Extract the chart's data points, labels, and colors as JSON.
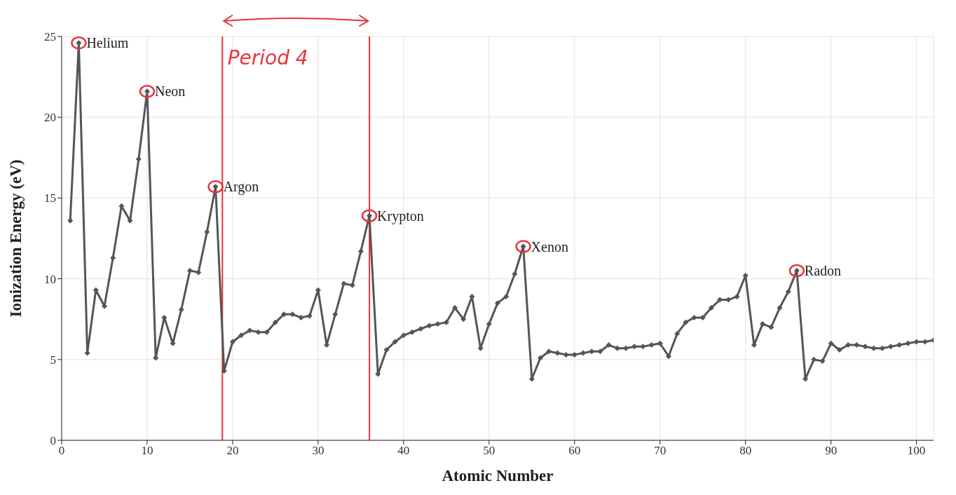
{
  "chart_data": {
    "type": "line",
    "xlabel": "Atomic Number",
    "ylabel": "Ionization Energy (eV)",
    "x": [
      1,
      2,
      3,
      4,
      5,
      6,
      7,
      8,
      9,
      10,
      11,
      12,
      13,
      14,
      15,
      16,
      17,
      18,
      19,
      20,
      21,
      22,
      23,
      24,
      25,
      26,
      27,
      28,
      29,
      30,
      31,
      32,
      33,
      34,
      35,
      36,
      37,
      38,
      39,
      40,
      41,
      42,
      43,
      44,
      45,
      46,
      47,
      48,
      49,
      50,
      51,
      52,
      53,
      54,
      55,
      56,
      57,
      58,
      59,
      60,
      61,
      62,
      63,
      64,
      65,
      66,
      67,
      68,
      69,
      70,
      71,
      72,
      73,
      74,
      75,
      76,
      77,
      78,
      79,
      80,
      81,
      82,
      83,
      84,
      85,
      86,
      87,
      88,
      89,
      90,
      91,
      92,
      93,
      94,
      95,
      96,
      97,
      98,
      99,
      100,
      101,
      102
    ],
    "values": [
      13.6,
      24.6,
      5.4,
      9.3,
      8.3,
      11.3,
      14.5,
      13.6,
      17.4,
      21.6,
      5.1,
      7.6,
      6.0,
      8.1,
      10.5,
      10.4,
      12.9,
      15.7,
      4.3,
      6.1,
      6.5,
      6.8,
      6.7,
      6.7,
      7.3,
      7.8,
      7.8,
      7.6,
      7.7,
      9.3,
      5.9,
      7.8,
      9.7,
      9.6,
      11.7,
      13.9,
      4.1,
      5.6,
      6.1,
      6.5,
      6.7,
      6.9,
      7.1,
      7.2,
      7.3,
      8.2,
      7.5,
      8.9,
      5.7,
      7.2,
      8.5,
      8.9,
      10.3,
      12.0,
      3.8,
      5.1,
      5.5,
      5.4,
      5.3,
      5.3,
      5.4,
      5.5,
      5.5,
      5.9,
      5.7,
      5.7,
      5.8,
      5.8,
      5.9,
      6.0,
      5.2,
      6.6,
      7.3,
      7.6,
      7.6,
      8.2,
      8.7,
      8.7,
      8.9,
      10.2,
      5.9,
      7.2,
      7.0,
      8.2,
      9.2,
      10.5,
      3.8,
      5.0,
      4.9,
      6.0,
      5.6,
      5.9,
      5.9,
      5.8,
      5.7,
      5.7,
      5.8,
      5.9,
      6.0,
      6.1,
      6.1,
      6.2
    ],
    "color": "#555555",
    "marker": "diamond",
    "xlim": [
      0,
      102
    ],
    "xticks": [
      0,
      10,
      20,
      30,
      40,
      50,
      60,
      70,
      80,
      90,
      100
    ],
    "ylim": [
      0,
      25
    ],
    "yticks": [
      0,
      5,
      10,
      15,
      20,
      25
    ],
    "grid": true,
    "ref_lines": [
      {
        "axis": "x",
        "value": 18.8,
        "color": "#e8333a"
      },
      {
        "axis": "x",
        "value": 36,
        "color": "#e8333a"
      }
    ],
    "annotations": [
      {
        "text": "Helium",
        "x": 2,
        "y": 24.6
      },
      {
        "text": "Neon",
        "x": 10,
        "y": 21.6
      },
      {
        "text": "Argon",
        "x": 18,
        "y": 15.7
      },
      {
        "text": "Krypton",
        "x": 36,
        "y": 13.9
      },
      {
        "text": "Xenon",
        "x": 54,
        "y": 12.0
      },
      {
        "text": "Radon",
        "x": 86,
        "y": 10.5
      },
      "Period 4"
    ]
  }
}
